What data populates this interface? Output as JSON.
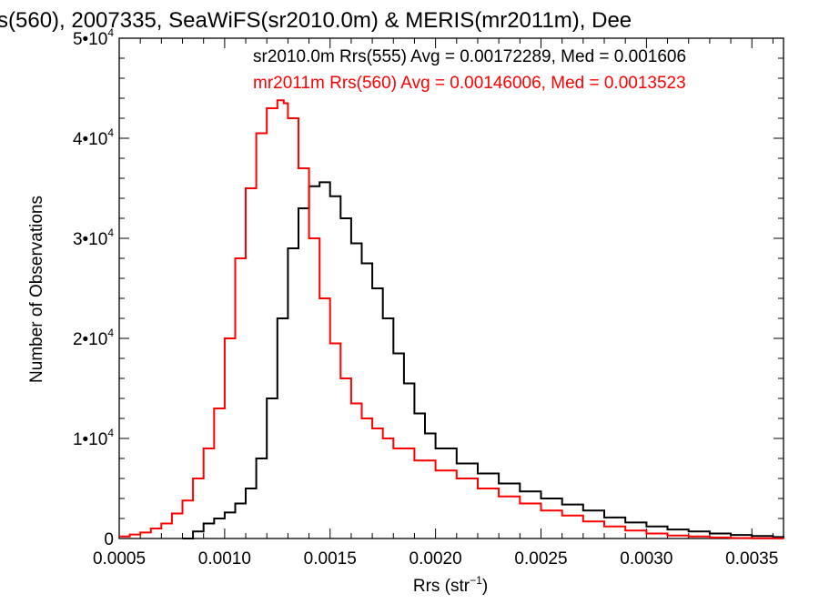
{
  "chart_data": {
    "type": "line",
    "title": "s(560), 2007335, SeaWiFS(sr2010.0m) & MERIS(mr2011m), Dee",
    "xlabel_main": "Rrs (str",
    "xlabel_sup": "−1",
    "xlabel_close": ")",
    "ylabel": "Number of Observations",
    "xlim": [
      0.0005,
      0.00365
    ],
    "ylim": [
      0,
      50000
    ],
    "grid": false,
    "x_ticks": [
      {
        "value": 0.0005,
        "label": "0.0005"
      },
      {
        "value": 0.001,
        "label": "0.0010"
      },
      {
        "value": 0.0015,
        "label": "0.0015"
      },
      {
        "value": 0.002,
        "label": "0.0020"
      },
      {
        "value": 0.0025,
        "label": "0.0025"
      },
      {
        "value": 0.003,
        "label": "0.0030"
      },
      {
        "value": 0.0035,
        "label": "0.0035"
      }
    ],
    "y_ticks": [
      {
        "value": 0,
        "base": "0",
        "exp": ""
      },
      {
        "value": 10000,
        "base": "1•10",
        "exp": "4"
      },
      {
        "value": 20000,
        "base": "2•10",
        "exp": "4"
      },
      {
        "value": 30000,
        "base": "3•10",
        "exp": "4"
      },
      {
        "value": 40000,
        "base": "4•10",
        "exp": "4"
      },
      {
        "value": 50000,
        "base": "5•10",
        "exp": "4"
      }
    ],
    "series": [
      {
        "name": "sr2010.0m Rrs(555) Avg = 0.00172289, Med = 0.001606",
        "color": "#000000",
        "x": [
          0.0008,
          0.00085,
          0.0009,
          0.00095,
          0.001,
          0.00105,
          0.0011,
          0.00115,
          0.0012,
          0.00125,
          0.0013,
          0.00135,
          0.0014,
          0.00145,
          0.0015,
          0.00155,
          0.0016,
          0.00165,
          0.0017,
          0.00175,
          0.0018,
          0.00185,
          0.0019,
          0.00195,
          0.002,
          0.0021,
          0.0022,
          0.0023,
          0.0024,
          0.0025,
          0.0026,
          0.0027,
          0.0028,
          0.0029,
          0.003,
          0.0031,
          0.0032,
          0.0033,
          0.0034,
          0.0035,
          0.0036,
          0.00365
        ],
        "y": [
          0,
          700,
          1500,
          2000,
          2600,
          3500,
          5000,
          8000,
          14000,
          22000,
          29000,
          33000,
          35200,
          35600,
          34200,
          32000,
          29500,
          27500,
          25000,
          22000,
          18500,
          15500,
          12500,
          10500,
          9000,
          7500,
          6500,
          5500,
          4700,
          4000,
          3400,
          2800,
          2100,
          1600,
          1200,
          900,
          700,
          500,
          350,
          250,
          150,
          100
        ]
      },
      {
        "name": "mr2011m Rrs(560) Avg = 0.00146006, Med = 0.0013523",
        "color": "#ff0000",
        "x": [
          0.0005,
          0.00055,
          0.0006,
          0.00065,
          0.0007,
          0.00075,
          0.0008,
          0.00085,
          0.0009,
          0.00095,
          0.001,
          0.00105,
          0.0011,
          0.00115,
          0.0012,
          0.00125,
          0.00128,
          0.0013,
          0.00135,
          0.0014,
          0.00145,
          0.0015,
          0.00155,
          0.0016,
          0.00165,
          0.0017,
          0.00175,
          0.0018,
          0.0019,
          0.002,
          0.0021,
          0.0022,
          0.0023,
          0.0024,
          0.0025,
          0.0026,
          0.0027,
          0.0028,
          0.0029,
          0.003,
          0.0031,
          0.0032,
          0.0033,
          0.0034,
          0.0035,
          0.0036,
          0.00365
        ],
        "y": [
          200,
          400,
          600,
          1000,
          1500,
          2500,
          3800,
          6000,
          9000,
          13000,
          20000,
          28000,
          35000,
          40500,
          43000,
          43800,
          43500,
          42000,
          37000,
          30000,
          24000,
          19500,
          16000,
          13500,
          12000,
          11000,
          10000,
          9000,
          7800,
          6800,
          6000,
          5000,
          4200,
          3500,
          2800,
          2300,
          1700,
          1200,
          800,
          500,
          300,
          200,
          100,
          50,
          30,
          10,
          5
        ]
      }
    ]
  }
}
